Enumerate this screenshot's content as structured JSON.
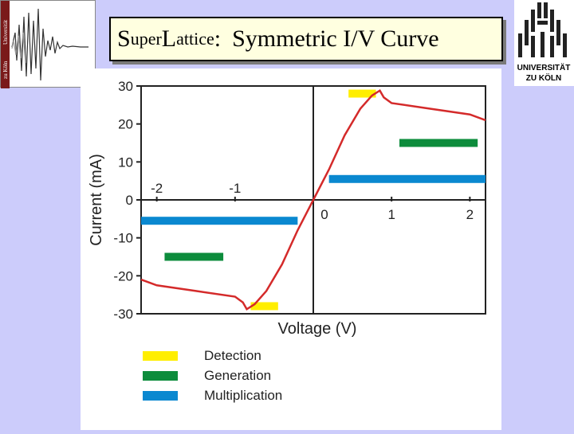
{
  "title": {
    "part1": "S",
    "part2": "uper",
    "part3": "L",
    "part4": "attice",
    "part5": ":",
    "part6": "Symmetric  I/V Curve"
  },
  "logo_left": {
    "text_top": "Universität",
    "text_bottom": "zu Köln",
    "icon": "superlattice-signal-logo"
  },
  "logo_right": {
    "line1": "UNIVERSITÄT",
    "line2": "ZU KÖLN",
    "icon": "university-cologne-logo"
  },
  "colors": {
    "background": "#ccccfb",
    "curve": "#d42a2a",
    "detection": "#ffee00",
    "generation": "#0d8c3c",
    "multiplication": "#0a88d0"
  },
  "chart_data": {
    "type": "line",
    "xlabel": "Voltage (V)",
    "ylabel": "Current (mA)",
    "xlim": [
      -2.2,
      2.2
    ],
    "ylim": [
      -30,
      30
    ],
    "x_ticks": [
      "-2",
      "-1",
      "0",
      "1",
      "2"
    ],
    "y_ticks": [
      "30",
      "20",
      "10",
      "0",
      "-10",
      "-20",
      "-30"
    ],
    "series": [
      {
        "points": [
          [
            -2.2,
            -21
          ],
          [
            -2.0,
            -22.5
          ],
          [
            -1.5,
            -24
          ],
          [
            -1.0,
            -25.5
          ],
          [
            -0.9,
            -27
          ],
          [
            -0.85,
            -28.8
          ],
          [
            -0.75,
            -27.5
          ],
          [
            -0.6,
            -24
          ],
          [
            -0.4,
            -17
          ],
          [
            -0.2,
            -8
          ],
          [
            0.0,
            0
          ],
          [
            0.2,
            8
          ],
          [
            0.4,
            17
          ],
          [
            0.6,
            24
          ],
          [
            0.75,
            27.5
          ],
          [
            0.85,
            28.8
          ],
          [
            0.9,
            27
          ],
          [
            1.0,
            25.5
          ],
          [
            1.5,
            24
          ],
          [
            2.0,
            22.5
          ],
          [
            2.2,
            21
          ]
        ]
      }
    ],
    "bars": [
      {
        "legend": "Detection",
        "x": [
          0.45,
          0.8
        ],
        "y": 28,
        "color": "#ffee00"
      },
      {
        "legend": "Detection",
        "x": [
          -0.8,
          -0.45
        ],
        "y": -28,
        "color": "#ffee00"
      },
      {
        "legend": "Generation",
        "x": [
          1.1,
          2.1
        ],
        "y": 15,
        "color": "#0d8c3c"
      },
      {
        "legend": "Generation",
        "x": [
          -1.9,
          -1.15
        ],
        "y": -15,
        "color": "#0d8c3c"
      },
      {
        "legend": "Multiplication",
        "x": [
          0.2,
          2.2
        ],
        "y": 5.5,
        "color": "#0a88d0"
      },
      {
        "legend": "Multiplication",
        "x": [
          -2.2,
          -0.2
        ],
        "y": -5.5,
        "color": "#0a88d0"
      }
    ],
    "legend": [
      {
        "label": "Detection",
        "color": "#ffee00"
      },
      {
        "label": "Generation",
        "color": "#0d8c3c"
      },
      {
        "label": "Multiplication",
        "color": "#0a88d0"
      }
    ]
  }
}
